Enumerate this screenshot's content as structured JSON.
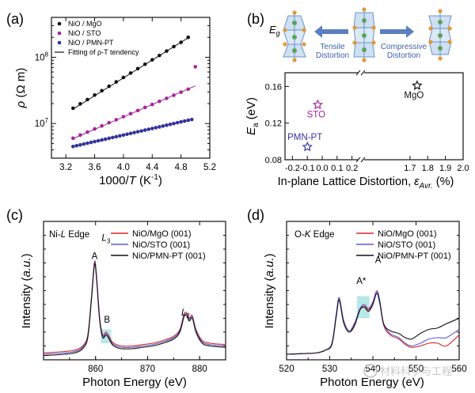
{
  "figure_labels": {
    "a": "(a)",
    "b": "(b)",
    "c": "(c)",
    "d": "(d)"
  },
  "watermark": "材料科学与工程",
  "colors": {
    "black": "#111111",
    "purple": "#a8239a",
    "blue": "#33339a",
    "red": "#d62a2a",
    "blue_line": "#5b5bd6",
    "highlight": "#9fe0dc",
    "crystal_edge": "#6a93c9",
    "crystal_fill": "#cfe0f3",
    "atom_green": "#5aa35a",
    "atom_orange": "#e09a3a",
    "arrow": "#5b7fc0"
  },
  "chart_data": [
    {
      "id": "a",
      "type": "scatter",
      "title": "",
      "xlabel": "1000/T (K⁻¹)",
      "xlabel_parts": {
        "pre": "1000/",
        "var": "T",
        "post": " (K",
        "sup": "-1",
        "close": ")"
      },
      "ylabel": "ρ (Ω m)",
      "ylabel_parts": {
        "var": "ρ",
        "post": " (Ω m)"
      },
      "yscale": "log",
      "xlim": [
        3.0,
        5.2
      ],
      "ylim": [
        3000000,
        400000000
      ],
      "xticks": [
        3.2,
        3.6,
        4.0,
        4.4,
        4.8,
        5.2
      ],
      "xtick_labels": [
        "3.2",
        "3.6",
        "4.0",
        "4.4",
        "4.8",
        "5.2"
      ],
      "yticks": [
        10000000,
        100000000
      ],
      "ytick_labels": [
        {
          "base": "10",
          "exp": "7"
        },
        {
          "base": "10",
          "exp": "8"
        }
      ],
      "legend": [
        {
          "label": "NiO / MgO",
          "kind": "dot",
          "color": "#111111"
        },
        {
          "label": "NiO / STO",
          "kind": "dot",
          "color": "#a8239a"
        },
        {
          "label": "NiO / PMN-PT",
          "kind": "dot",
          "color": "#33339a"
        },
        {
          "label": "Fitting of ρ-T tendency",
          "kind": "line",
          "color": "#111111"
        }
      ],
      "series": [
        {
          "name": "NiO / MgO",
          "color": "#111111",
          "x": [
            3.3,
            3.4,
            3.5,
            3.6,
            3.7,
            3.8,
            3.9,
            4.0,
            4.1,
            4.2,
            4.3,
            4.4,
            4.5,
            4.6,
            4.7,
            4.8,
            4.9
          ],
          "y": [
            17000000,
            19800000,
            23000000,
            26900000,
            31300000,
            36500000,
            42500000,
            49600000,
            57800000,
            67400000,
            78500000,
            91500000,
            106500000,
            124000000,
            145000000,
            168000000,
            200000000
          ],
          "fit": {
            "x0": 3.3,
            "x1": 4.9,
            "y0": 16500000,
            "y1": 197000000
          }
        },
        {
          "name": "NiO / STO",
          "color": "#a8239a",
          "x": [
            3.3,
            3.4,
            3.5,
            3.6,
            3.7,
            3.8,
            3.9,
            4.0,
            4.1,
            4.2,
            4.3,
            4.4,
            4.5,
            4.6,
            4.7,
            4.8,
            4.9,
            5.0
          ],
          "y": [
            6000000,
            6700000,
            7450000,
            8300000,
            9200000,
            10300000,
            11400000,
            12700000,
            14100000,
            15700000,
            17500000,
            19400000,
            21600000,
            24000000,
            26700000,
            29700000,
            33000000,
            72000000
          ],
          "fit": {
            "x0": 3.3,
            "x1": 5.0,
            "y0": 5900000,
            "y1": 37000000
          }
        },
        {
          "name": "NiO / PMN-PT",
          "color": "#33339a",
          "x": [
            3.3,
            3.35,
            3.4,
            3.45,
            3.5,
            3.55,
            3.6,
            3.65,
            3.7,
            3.75,
            3.8,
            3.85,
            3.9,
            3.95,
            4.0,
            4.05,
            4.1,
            4.15,
            4.2,
            4.25,
            4.3,
            4.35,
            4.4,
            4.45,
            4.5,
            4.55,
            4.6,
            4.65,
            4.7,
            4.75,
            4.8,
            4.85,
            4.9,
            4.95
          ],
          "y": [
            4500000,
            4630000,
            4760000,
            4900000,
            5040000,
            5190000,
            5340000,
            5490000,
            5650000,
            5810000,
            5980000,
            6150000,
            6330000,
            6510000,
            6700000,
            6890000,
            7090000,
            7300000,
            7510000,
            7720000,
            7950000,
            8180000,
            8410000,
            8650000,
            8900000,
            9160000,
            9430000,
            9700000,
            9980000,
            10300000,
            10600000,
            10900000,
            11200000,
            11500000
          ],
          "fit": {
            "x0": 3.3,
            "x1": 4.95,
            "y0": 4450000,
            "y1": 11700000
          }
        }
      ]
    },
    {
      "id": "b",
      "type": "scatter",
      "title": "",
      "xlabel": "In-plane Lattice Distortion, εAvr. (%)",
      "xlabel_parts": {
        "pre": "In-plane Lattice Distortion, ",
        "var": "ε",
        "sub": "Avr.",
        "post": " (%)"
      },
      "ylabel": "Ea (eV)",
      "ylabel_parts": {
        "var": "E",
        "sub": "a",
        "post": " (eV)"
      },
      "broken_axis": {
        "left_range": [
          -0.25,
          0.25
        ],
        "right_range": [
          1.45,
          2.0
        ]
      },
      "ylim": [
        0.08,
        0.175
      ],
      "xticks": [
        -0.2,
        -0.1,
        0.0,
        0.1,
        0.2,
        1.7,
        1.8,
        1.9,
        2.0
      ],
      "xtick_labels": [
        "-0.2",
        "-0.1",
        "0.0",
        "0.1",
        "0.2",
        "1.7",
        "1.8",
        "1.9",
        "2.0"
      ],
      "yticks": [
        0.08,
        0.12,
        0.16
      ],
      "ytick_labels": [
        "0.08",
        "0.12",
        "0.16"
      ],
      "points": [
        {
          "label": "PMN-PT",
          "x": -0.1,
          "y": 0.094,
          "color": "#33339a",
          "marker": "star"
        },
        {
          "label": "STO",
          "x": -0.03,
          "y": 0.14,
          "color": "#a8239a",
          "marker": "star"
        },
        {
          "label": "MgO",
          "x": 1.74,
          "y": 0.161,
          "color": "#111111",
          "marker": "star"
        }
      ],
      "inset": {
        "eg_label": "E",
        "eg_sub": "g",
        "tensile": [
          "Tensile",
          "Distortion"
        ],
        "compressive": [
          "Compressive",
          "Distortion"
        ]
      }
    },
    {
      "id": "c",
      "type": "line",
      "title": "Ni-L Edge",
      "title_parts": {
        "pre": "Ni-",
        "var": "L",
        "post": " Edge"
      },
      "xlabel": "Photon Energy (eV)",
      "ylabel": "Intensity (a.u.)",
      "ylabel_parts": {
        "pre": "Intensity (",
        "var": "a.u.",
        "post": ")"
      },
      "xlim": [
        850,
        885
      ],
      "ylim": [
        0,
        1.0
      ],
      "xticks": [
        860,
        870,
        880
      ],
      "xtick_labels": [
        "860",
        "870",
        "880"
      ],
      "legend": [
        {
          "label": "NiO/MgO (001)",
          "color": "#d62a2a"
        },
        {
          "label": "NiO/STO (001)",
          "color": "#5b5bd6"
        },
        {
          "label": "NiO/PMN-PT (001)",
          "color": "#111111"
        }
      ],
      "annotations": [
        {
          "text": "A",
          "x": 859.8,
          "y": 0.73
        },
        {
          "text": "L3",
          "main": "L",
          "sub": "3",
          "x": 862.0,
          "y": 0.86
        },
        {
          "text": "B",
          "x": 862.2,
          "y": 0.27
        },
        {
          "text": "L2",
          "main": "L",
          "sub": "2",
          "x": 877.3,
          "y": 0.32
        }
      ],
      "highlight": {
        "x0": 861.0,
        "x1": 863.0,
        "y0": 0.12,
        "y1": 0.22
      },
      "series": [
        {
          "name": "NiO/MgO (001)",
          "color": "#d62a2a",
          "x": [
            850,
            854,
            856,
            857.5,
            858.5,
            859.2,
            859.8,
            860.2,
            860.8,
            861.4,
            862.0,
            862.6,
            863.2,
            864,
            865,
            867,
            869,
            871,
            873,
            875,
            876.2,
            877.0,
            877.5,
            878.0,
            878.6,
            879.3,
            880.5,
            882,
            885
          ],
          "y": [
            0.05,
            0.06,
            0.07,
            0.1,
            0.18,
            0.45,
            0.71,
            0.6,
            0.3,
            0.18,
            0.2,
            0.17,
            0.13,
            0.11,
            0.1,
            0.1,
            0.11,
            0.12,
            0.14,
            0.17,
            0.22,
            0.33,
            0.34,
            0.3,
            0.32,
            0.22,
            0.14,
            0.12,
            0.11
          ]
        },
        {
          "name": "NiO/STO (001)",
          "color": "#5b5bd6",
          "x": [
            850,
            854,
            856,
            857.5,
            858.5,
            859.2,
            859.8,
            860.2,
            860.8,
            861.4,
            862.0,
            862.6,
            863.2,
            864,
            865,
            867,
            869,
            871,
            873,
            875,
            876.2,
            877.0,
            877.5,
            878.0,
            878.6,
            879.3,
            880.5,
            882,
            885
          ],
          "y": [
            0.04,
            0.05,
            0.06,
            0.09,
            0.17,
            0.44,
            0.7,
            0.59,
            0.29,
            0.17,
            0.19,
            0.16,
            0.12,
            0.1,
            0.09,
            0.09,
            0.1,
            0.11,
            0.13,
            0.16,
            0.21,
            0.32,
            0.33,
            0.29,
            0.31,
            0.21,
            0.13,
            0.11,
            0.1
          ]
        },
        {
          "name": "NiO/PMN-PT (001)",
          "color": "#111111",
          "x": [
            850,
            854,
            856,
            857.5,
            858.5,
            859.2,
            859.8,
            860.2,
            860.8,
            861.4,
            862.0,
            862.6,
            863.2,
            864,
            865,
            867,
            869,
            871,
            873,
            875,
            876.2,
            877.0,
            877.5,
            878.0,
            878.6,
            879.3,
            880.5,
            882,
            885
          ],
          "y": [
            0.03,
            0.04,
            0.05,
            0.08,
            0.16,
            0.43,
            0.69,
            0.58,
            0.28,
            0.16,
            0.18,
            0.15,
            0.11,
            0.09,
            0.08,
            0.08,
            0.09,
            0.1,
            0.12,
            0.15,
            0.2,
            0.31,
            0.32,
            0.28,
            0.3,
            0.2,
            0.12,
            0.1,
            0.09
          ]
        }
      ]
    },
    {
      "id": "d",
      "type": "line",
      "title": "O-K Edge",
      "title_parts": {
        "pre": "O-",
        "var": "K",
        "post": " Edge"
      },
      "xlabel": "Photon Energy (eV)",
      "ylabel": "Intensity (a.u.)",
      "ylabel_parts": {
        "pre": "Intensity (",
        "var": "a.u.",
        "post": ")"
      },
      "xlim": [
        520,
        560
      ],
      "ylim": [
        0,
        1.0
      ],
      "xticks": [
        520,
        530,
        540,
        550,
        560
      ],
      "xtick_labels": [
        "520",
        "530",
        "540",
        "550",
        "560"
      ],
      "legend": [
        {
          "label": "NiO/MgO (001)",
          "color": "#d62a2a"
        },
        {
          "label": "NiO/STO (001)",
          "color": "#5b5bd6"
        },
        {
          "label": "NiO/PMN-PT (001)",
          "color": "#111111"
        }
      ],
      "annotations": [
        {
          "text": "A*",
          "x": 537.3,
          "y": 0.55
        },
        {
          "text": "A",
          "x": 541.2,
          "y": 0.7
        }
      ],
      "highlight": {
        "x0": 536.3,
        "x1": 539.2,
        "y0": 0.3,
        "y1": 0.46
      },
      "series": [
        {
          "name": "NiO/MgO (001)",
          "color": "#d62a2a",
          "x": [
            520,
            524,
            527,
            529,
            530.5,
            531.5,
            532.2,
            533.2,
            534.5,
            535.8,
            537,
            538,
            539,
            540,
            540.9,
            541.6,
            542.5,
            544,
            546,
            547.5,
            549,
            551,
            553,
            555,
            557,
            560
          ],
          "y": [
            0.04,
            0.045,
            0.05,
            0.07,
            0.12,
            0.32,
            0.44,
            0.28,
            0.2,
            0.26,
            0.36,
            0.39,
            0.36,
            0.41,
            0.49,
            0.42,
            0.25,
            0.18,
            0.15,
            0.11,
            0.09,
            0.1,
            0.12,
            0.12,
            0.1,
            0.18
          ]
        },
        {
          "name": "NiO/STO (001)",
          "color": "#5b5bd6",
          "x": [
            520,
            524,
            527,
            529,
            530.5,
            531.5,
            532.2,
            533.2,
            534.5,
            535.8,
            537,
            538,
            539,
            540,
            540.9,
            541.6,
            542.5,
            544,
            546,
            547.5,
            549,
            551,
            553,
            555,
            557,
            560
          ],
          "y": [
            0.04,
            0.045,
            0.05,
            0.07,
            0.12,
            0.33,
            0.45,
            0.29,
            0.21,
            0.27,
            0.37,
            0.4,
            0.37,
            0.42,
            0.5,
            0.43,
            0.26,
            0.19,
            0.16,
            0.12,
            0.1,
            0.12,
            0.15,
            0.16,
            0.16,
            0.22
          ]
        },
        {
          "name": "NiO/PMN-PT (001)",
          "color": "#111111",
          "x": [
            520,
            524,
            527,
            529,
            530.5,
            531.5,
            532.2,
            533.2,
            534.5,
            535.8,
            537,
            538,
            539,
            540,
            540.9,
            541.6,
            542.5,
            544,
            546,
            547.5,
            549,
            551,
            553,
            555,
            557,
            560
          ],
          "y": [
            0.04,
            0.045,
            0.05,
            0.07,
            0.11,
            0.31,
            0.43,
            0.27,
            0.2,
            0.25,
            0.36,
            0.38,
            0.35,
            0.4,
            0.48,
            0.41,
            0.26,
            0.21,
            0.19,
            0.16,
            0.15,
            0.19,
            0.22,
            0.23,
            0.26,
            0.3
          ]
        }
      ]
    }
  ]
}
